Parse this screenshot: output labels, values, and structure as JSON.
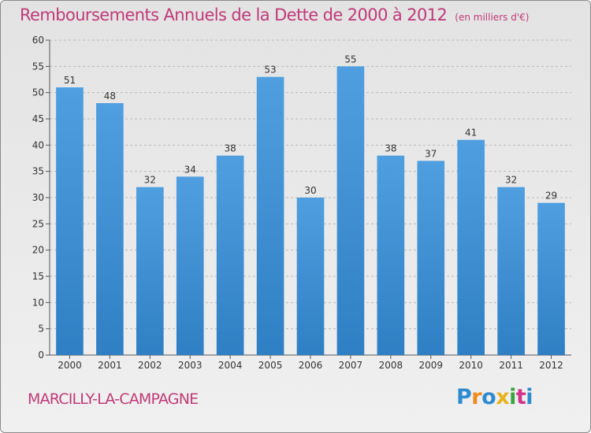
{
  "chart_data": {
    "type": "bar",
    "title": "Remboursements Annuels de la Dette de 2000 à 2012",
    "unit_note": "(en milliers d'€)",
    "categories": [
      "2000",
      "2001",
      "2002",
      "2003",
      "2004",
      "2005",
      "2006",
      "2007",
      "2008",
      "2009",
      "2010",
      "2011",
      "2012"
    ],
    "values": [
      51,
      48,
      32,
      34,
      38,
      53,
      30,
      55,
      38,
      37,
      41,
      32,
      29
    ],
    "ylim": [
      0,
      60
    ],
    "yticks": [
      0,
      5,
      10,
      15,
      20,
      25,
      30,
      35,
      40,
      45,
      50,
      55,
      60
    ],
    "grid": "horizontal-dashed",
    "bar_color": "#4f9fe0",
    "bar_color_dark": "#2f7fc4"
  },
  "footer": {
    "commune": "MARCILLY-LA-CAMPAGNE",
    "logo": "Proxiti"
  }
}
